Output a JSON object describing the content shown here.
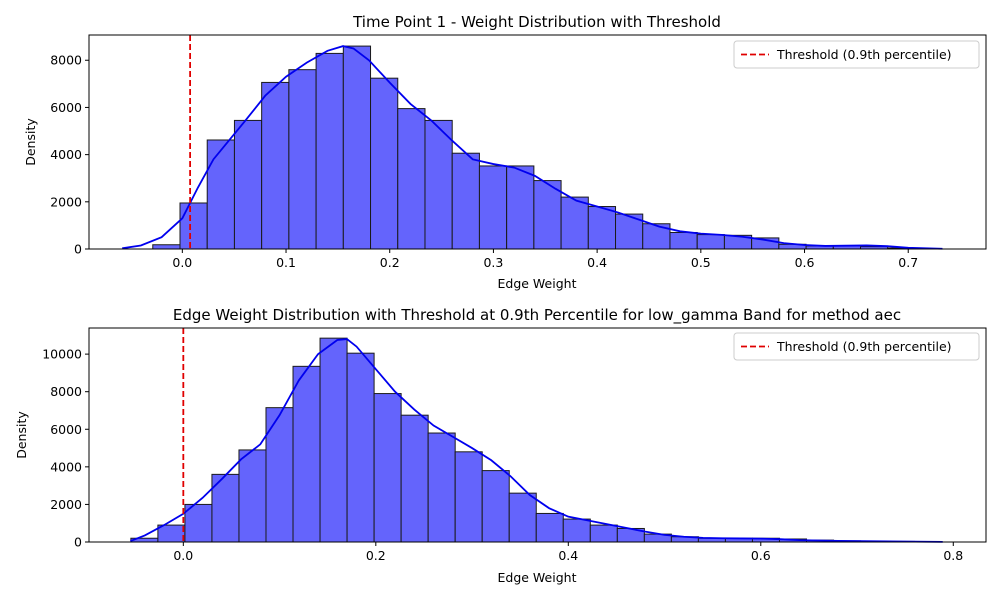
{
  "chart_data": [
    {
      "type": "bar",
      "title": "Time Point 1 - Weight Distribution with Threshold",
      "xlabel": "Edge Weight",
      "ylabel": "Density",
      "xlim": [
        -0.09,
        0.775
      ],
      "ylim": [
        0,
        9070
      ],
      "xticks": [
        0.0,
        0.1,
        0.2,
        0.3,
        0.4,
        0.5,
        0.6,
        0.7
      ],
      "xtick_labels": [
        "0.0",
        "0.1",
        "0.2",
        "0.3",
        "0.4",
        "0.5",
        "0.6",
        "0.7"
      ],
      "yticks": [
        0,
        2000,
        4000,
        6000,
        8000
      ],
      "ytick_labels": [
        "0",
        "2000",
        "4000",
        "6000",
        "8000"
      ],
      "bins": {
        "start": -0.0285,
        "width": 0.02625,
        "values": [
          180,
          1950,
          4620,
          5450,
          7060,
          7600,
          8290,
          8600,
          7240,
          5950,
          5450,
          4060,
          3520,
          3520,
          2900,
          2200,
          1800,
          1480,
          1070,
          700,
          610,
          580,
          470,
          200,
          130,
          130,
          100,
          40
        ]
      },
      "kde": {
        "x": [
          -0.058,
          -0.04,
          -0.02,
          0.0,
          0.015,
          0.03,
          0.045,
          0.06,
          0.08,
          0.1,
          0.12,
          0.14,
          0.155,
          0.165,
          0.18,
          0.2,
          0.22,
          0.24,
          0.26,
          0.28,
          0.3,
          0.32,
          0.34,
          0.36,
          0.38,
          0.4,
          0.42,
          0.44,
          0.46,
          0.48,
          0.5,
          0.52,
          0.54,
          0.56,
          0.58,
          0.6,
          0.62,
          0.64,
          0.66,
          0.68,
          0.7,
          0.733
        ],
        "y": [
          30,
          150,
          500,
          1300,
          2600,
          3800,
          4600,
          5400,
          6500,
          7300,
          7900,
          8400,
          8600,
          8500,
          8000,
          7050,
          6150,
          5450,
          4600,
          3800,
          3600,
          3450,
          3100,
          2550,
          2050,
          1800,
          1550,
          1250,
          950,
          750,
          650,
          600,
          520,
          400,
          250,
          170,
          130,
          140,
          150,
          120,
          50,
          10
        ]
      },
      "threshold": {
        "x": 0.0075,
        "color": "#e00000"
      },
      "legend": {
        "label": "Threshold (0.9th percentile)",
        "location": "top-right"
      },
      "grid": false
    },
    {
      "type": "bar",
      "title": "Edge Weight Distribution with Threshold at 0.9th Percentile for low_gamma Band for method aec",
      "xlabel": "Edge Weight",
      "ylabel": "Density",
      "xlim": [
        -0.098,
        0.834
      ],
      "ylim": [
        0,
        11390
      ],
      "xticks": [
        0.0,
        0.2,
        0.4,
        0.6,
        0.8
      ],
      "xtick_labels": [
        "0.0",
        "0.2",
        "0.4",
        "0.6",
        "0.8"
      ],
      "yticks": [
        0,
        2000,
        4000,
        6000,
        8000,
        10000
      ],
      "ytick_labels": [
        "0",
        "2000",
        "4000",
        "6000",
        "8000",
        "10000"
      ],
      "bins": {
        "start": -0.0545,
        "width": 0.02808,
        "values": [
          200,
          900,
          2000,
          3600,
          4900,
          7150,
          9350,
          10850,
          10050,
          7900,
          6750,
          5800,
          4800,
          3800,
          2600,
          1520,
          1220,
          900,
          720,
          420,
          280,
          200,
          200,
          200,
          160,
          100,
          60,
          40,
          30,
          20
        ]
      },
      "kde": {
        "x": [
          -0.055,
          -0.04,
          -0.02,
          0.0,
          0.02,
          0.04,
          0.06,
          0.08,
          0.1,
          0.12,
          0.14,
          0.16,
          0.17,
          0.18,
          0.2,
          0.22,
          0.24,
          0.26,
          0.28,
          0.3,
          0.32,
          0.34,
          0.36,
          0.38,
          0.4,
          0.42,
          0.44,
          0.46,
          0.48,
          0.5,
          0.52,
          0.54,
          0.56,
          0.58,
          0.6,
          0.62,
          0.64,
          0.68,
          0.72,
          0.76,
          0.789
        ],
        "y": [
          50,
          350,
          900,
          1500,
          2350,
          3350,
          4400,
          5200,
          6750,
          8600,
          10000,
          10750,
          10800,
          10400,
          9200,
          8000,
          7050,
          6200,
          5600,
          5000,
          4350,
          3500,
          2500,
          1800,
          1350,
          1150,
          950,
          750,
          550,
          380,
          280,
          220,
          200,
          190,
          180,
          150,
          100,
          60,
          40,
          20,
          5
        ]
      },
      "threshold": {
        "x": 0.0,
        "color": "#e00000"
      },
      "legend": {
        "label": "Threshold (0.9th percentile)",
        "location": "top-right"
      },
      "grid": false
    }
  ],
  "style": {
    "bar_fill": "#6464fc",
    "bar_edge": "#1a1a1a",
    "kde_color": "#0000ee",
    "axis_color": "#000000"
  }
}
